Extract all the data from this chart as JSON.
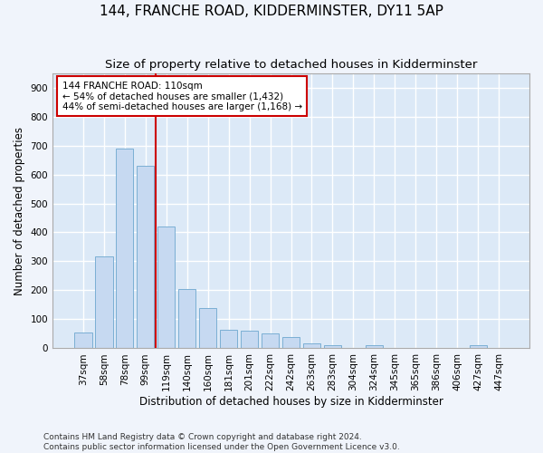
{
  "title": "144, FRANCHE ROAD, KIDDERMINSTER, DY11 5AP",
  "subtitle": "Size of property relative to detached houses in Kidderminster",
  "xlabel": "Distribution of detached houses by size in Kidderminster",
  "ylabel": "Number of detached properties",
  "categories": [
    "37sqm",
    "58sqm",
    "78sqm",
    "99sqm",
    "119sqm",
    "140sqm",
    "160sqm",
    "181sqm",
    "201sqm",
    "222sqm",
    "242sqm",
    "263sqm",
    "283sqm",
    "304sqm",
    "324sqm",
    "345sqm",
    "365sqm",
    "386sqm",
    "406sqm",
    "427sqm",
    "447sqm"
  ],
  "values": [
    55,
    318,
    690,
    630,
    420,
    205,
    140,
    65,
    60,
    50,
    40,
    18,
    10,
    0,
    10,
    0,
    0,
    0,
    0,
    10,
    0
  ],
  "bar_color": "#c6d9f1",
  "bar_edge_color": "#7bafd4",
  "vline_x": 3.5,
  "vline_color": "#cc0000",
  "annotation_text": "144 FRANCHE ROAD: 110sqm\n← 54% of detached houses are smaller (1,432)\n44% of semi-detached houses are larger (1,168) →",
  "annotation_box_color": "#ffffff",
  "annotation_box_edge_color": "#cc0000",
  "ylim": [
    0,
    950
  ],
  "yticks": [
    0,
    100,
    200,
    300,
    400,
    500,
    600,
    700,
    800,
    900
  ],
  "footer": "Contains HM Land Registry data © Crown copyright and database right 2024.\nContains public sector information licensed under the Open Government Licence v3.0.",
  "background_color": "#dce9f7",
  "grid_color": "#ffffff",
  "fig_background": "#f0f4fb",
  "title_fontsize": 11,
  "subtitle_fontsize": 9.5,
  "axis_label_fontsize": 8.5,
  "tick_fontsize": 7.5,
  "footer_fontsize": 6.5,
  "annotation_fontsize": 7.5
}
